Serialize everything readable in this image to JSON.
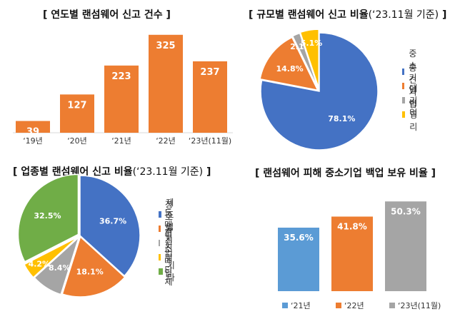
{
  "chart_data": [
    {
      "type": "bar",
      "title": "[ 연도별 랜섬웨어 신고 건수 ]",
      "categories": [
        "‘19년",
        "‘20년",
        "‘21년",
        "‘22년",
        "‘23년(11월)"
      ],
      "values": [
        39,
        127,
        223,
        325,
        237
      ],
      "color": "#ED7D31",
      "ylim": [
        0,
        360
      ],
      "grid": false
    },
    {
      "type": "pie",
      "title": "[ 규모별 랜섬웨어 신고 비율",
      "subtitle": "(‘23.11월 기준)",
      "title_end": "]",
      "categories": [
        "중소기업",
        "중견기업",
        "대기업",
        "비영리"
      ],
      "values": [
        78.1,
        14.8,
        2.1,
        5.1
      ],
      "labels": [
        "78.1%",
        "14.8%",
        "2.1%",
        "5.1%"
      ],
      "colors": [
        "#4472C4",
        "#ED7D31",
        "#A5A5A5",
        "#FFC000"
      ],
      "legend": "right"
    },
    {
      "type": "pie",
      "title": "[ 업종별 랜섬웨어 신고 비율",
      "subtitle": "(‘23.11월 기준)",
      "title_end": "]",
      "categories": [
        "제조업",
        "정보통신업",
        "도매 및 소매업",
        "협회 및 단체",
        "기타"
      ],
      "values": [
        36.7,
        18.1,
        8.4,
        4.2,
        32.5
      ],
      "labels": [
        "36.7%",
        "18.1%",
        "8.4%",
        "4.2%",
        "32.5%"
      ],
      "colors": [
        "#4472C4",
        "#ED7D31",
        "#A5A5A5",
        "#FFC000",
        "#70AD47"
      ],
      "legend": "right"
    },
    {
      "type": "bar",
      "title": "[ 랜섬웨어 피해 중소기업 백업 보유 비율 ]",
      "categories": [
        "‘21년",
        "‘22년",
        "‘23년(11월)"
      ],
      "values": [
        35.6,
        41.8,
        50.3
      ],
      "labels": [
        "35.6%",
        "41.8%",
        "50.3%"
      ],
      "colors": [
        "#5B9BD5",
        "#ED7D31",
        "#A5A5A5"
      ],
      "ylim": [
        0,
        60
      ],
      "legend": "bottom"
    }
  ]
}
